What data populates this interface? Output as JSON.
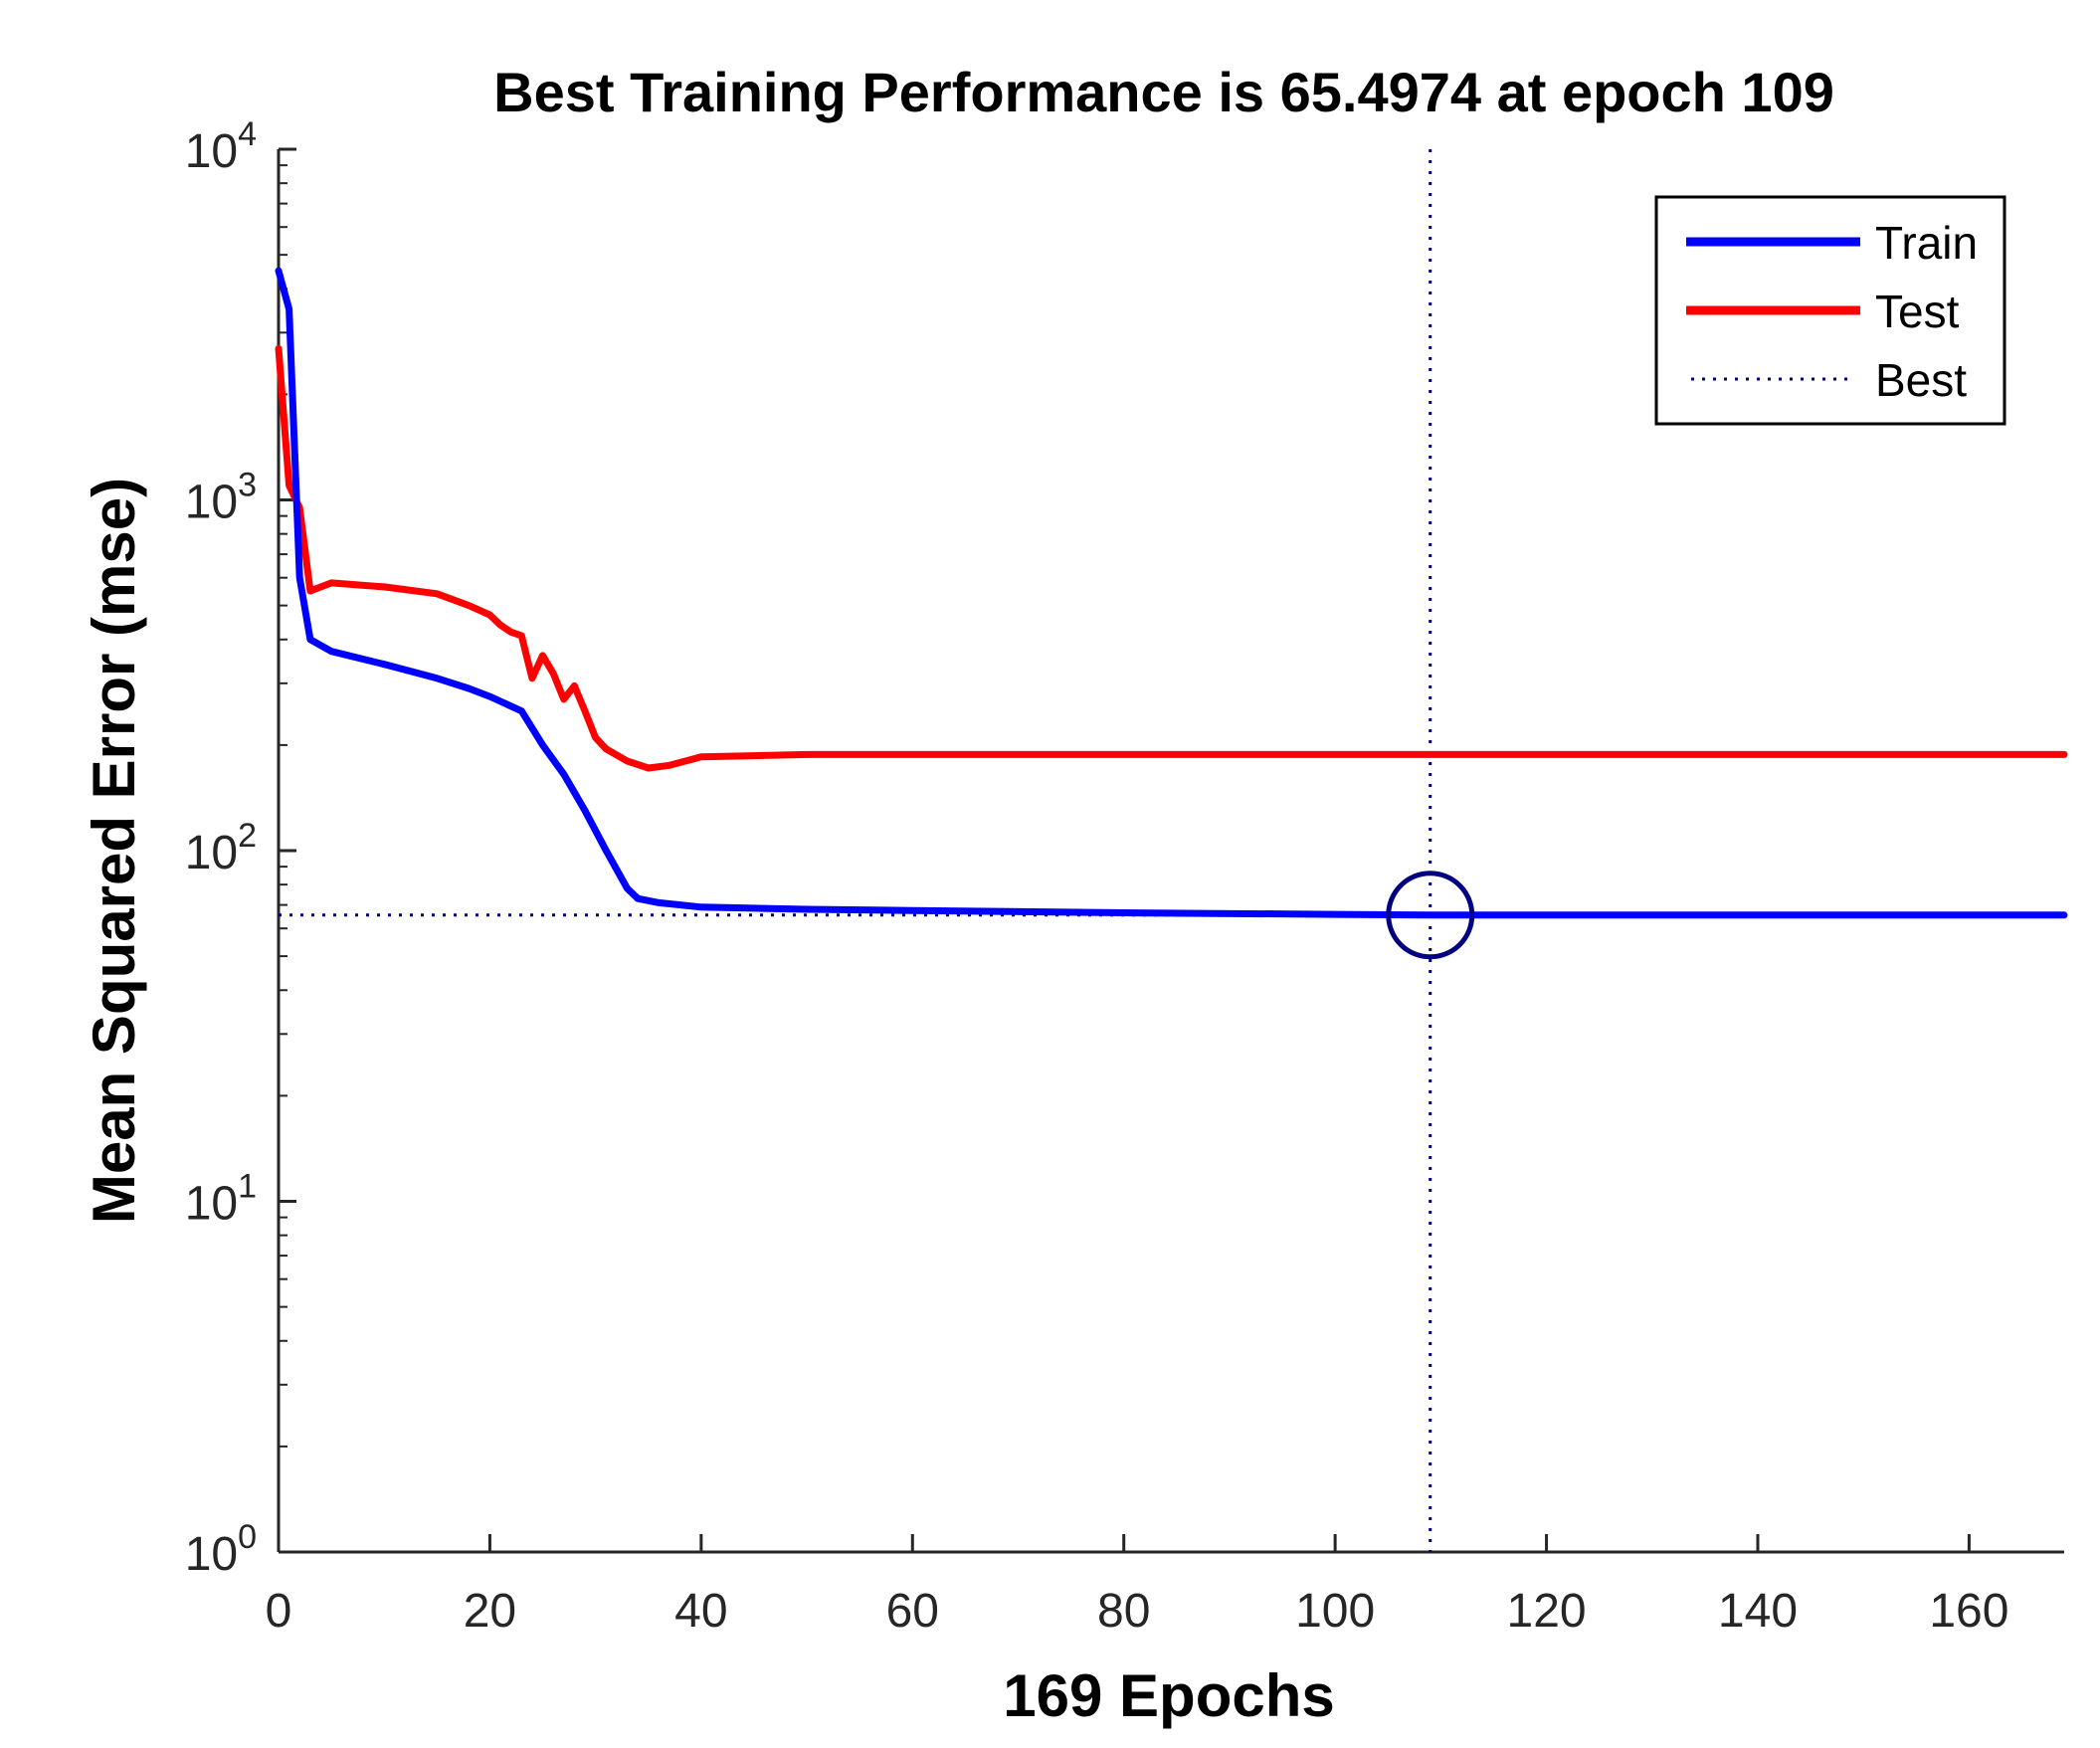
{
  "chart_data": {
    "type": "line",
    "title": "Best Training Performance is 65.4974 at epoch 109",
    "xlabel": "169 Epochs",
    "ylabel": "Mean Squared Error  (mse)",
    "xlim": [
      0,
      169
    ],
    "ylim": [
      1,
      10000
    ],
    "yscale": "log",
    "x_ticks": [
      "0",
      "20",
      "40",
      "60",
      "80",
      "100",
      "120",
      "140",
      "160"
    ],
    "y_ticks": [
      {
        "base": "10",
        "exp": "0"
      },
      {
        "base": "10",
        "exp": "1"
      },
      {
        "base": "10",
        "exp": "2"
      },
      {
        "base": "10",
        "exp": "3"
      },
      {
        "base": "10",
        "exp": "4"
      }
    ],
    "legend_position": "top-right",
    "series": [
      {
        "name": "Train",
        "color": "#0000ff",
        "x": [
          0,
          1,
          2,
          3,
          5,
          10,
          15,
          18,
          20,
          23,
          25,
          27,
          29,
          31,
          33,
          34,
          36,
          40,
          50,
          60,
          80,
          100,
          109,
          120,
          140,
          169
        ],
        "y": [
          4500,
          3500,
          600,
          400,
          370,
          340,
          310,
          290,
          275,
          250,
          200,
          165,
          130,
          100,
          78,
          73,
          71,
          69,
          68,
          67.5,
          66.5,
          65.8,
          65.4974,
          65.4974,
          65.5,
          65.5
        ]
      },
      {
        "name": "Test",
        "color": "#ff0000",
        "x": [
          0,
          1,
          2,
          3,
          5,
          10,
          15,
          18,
          20,
          21,
          22,
          23,
          24,
          25,
          26,
          27,
          28,
          29,
          30,
          31,
          33,
          35,
          37,
          40,
          50,
          60,
          80,
          100,
          120,
          140,
          169
        ],
        "y": [
          2700,
          1100,
          950,
          550,
          580,
          565,
          540,
          500,
          470,
          440,
          420,
          410,
          310,
          360,
          320,
          270,
          295,
          250,
          210,
          195,
          180,
          172,
          175,
          185,
          188,
          188,
          188,
          188,
          188,
          188,
          188
        ]
      }
    ],
    "best": {
      "name": "Best",
      "epoch": 109,
      "value": 65.4974
    }
  }
}
